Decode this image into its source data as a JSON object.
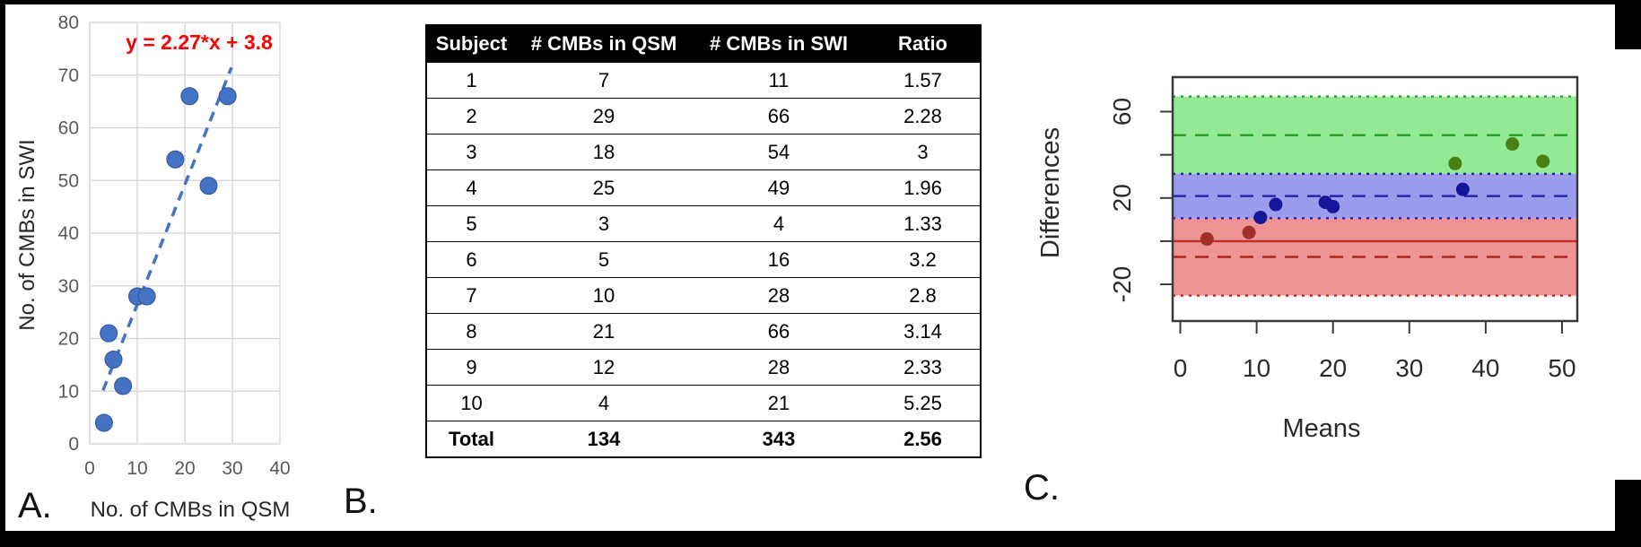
{
  "labels": {
    "panel_a": "A.",
    "panel_b": "B.",
    "panel_c": "C."
  },
  "table": {
    "headers": [
      "Subject",
      "# CMBs in QSM",
      "# CMBs in SWI",
      "Ratio"
    ],
    "rows": [
      [
        "1",
        "7",
        "11",
        "1.57"
      ],
      [
        "2",
        "29",
        "66",
        "2.28"
      ],
      [
        "3",
        "18",
        "54",
        "3"
      ],
      [
        "4",
        "25",
        "49",
        "1.96"
      ],
      [
        "5",
        "3",
        "4",
        "1.33"
      ],
      [
        "6",
        "5",
        "16",
        "3.2"
      ],
      [
        "7",
        "10",
        "28",
        "2.8"
      ],
      [
        "8",
        "21",
        "66",
        "3.14"
      ],
      [
        "9",
        "12",
        "28",
        "2.33"
      ],
      [
        "10",
        "4",
        "21",
        "5.25"
      ]
    ],
    "total_row": [
      "Total",
      "134",
      "343",
      "2.56"
    ]
  },
  "chart_data": [
    {
      "panel": "A",
      "type": "scatter",
      "equation_label": "y = 2.27*x + 3.8",
      "equation_color": "#FF0000",
      "xlabel": "No. of CMBs in QSM",
      "ylabel": "No. of CMBs in SWI",
      "xlim": [
        0,
        40
      ],
      "ylim": [
        0,
        80
      ],
      "xticks": [
        0,
        10,
        20,
        30,
        40
      ],
      "yticks": [
        0,
        10,
        20,
        30,
        40,
        50,
        60,
        70,
        80
      ],
      "grid": true,
      "grid_color": "#D9D9D9",
      "tick_color": "#595959",
      "point_color": "#4472C4",
      "points": [
        {
          "x": 7,
          "y": 11
        },
        {
          "x": 29,
          "y": 66
        },
        {
          "x": 18,
          "y": 54
        },
        {
          "x": 25,
          "y": 49
        },
        {
          "x": 3,
          "y": 4
        },
        {
          "x": 5,
          "y": 16
        },
        {
          "x": 10,
          "y": 28
        },
        {
          "x": 21,
          "y": 66
        },
        {
          "x": 12,
          "y": 28
        },
        {
          "x": 4,
          "y": 21
        }
      ],
      "trendline": {
        "slope": 2.27,
        "intercept": 3.8,
        "x_start": 2.8,
        "x_end": 29.8,
        "style": "dashed",
        "color": "#4472C4"
      }
    },
    {
      "panel": "C",
      "type": "scatter",
      "subtype": "bland-altman",
      "xlabel": "Means",
      "ylabel": "Differences",
      "xlim": [
        -1,
        52
      ],
      "ylim": [
        -37,
        76
      ],
      "xticks": [
        0,
        10,
        20,
        30,
        40,
        50
      ],
      "yticks": [
        -20,
        0,
        20,
        40,
        60
      ],
      "ytick_labels": [
        -20,
        20,
        60
      ],
      "bands": [
        {
          "y_from": 31.2,
          "y_to": 67.0,
          "fill": "#94EA94",
          "name": "upper-loa-ci-band"
        },
        {
          "y_from": 10.6,
          "y_to": 31.2,
          "fill": "#9C9CEC",
          "name": "bias-ci-band"
        },
        {
          "y_from": -25.2,
          "y_to": 10.6,
          "fill": "#EE9494",
          "name": "lower-loa-ci-band"
        }
      ],
      "lines": [
        {
          "y": 67.0,
          "style": "dotted",
          "color": "#2CA02C"
        },
        {
          "y": 49.1,
          "style": "dashed",
          "color": "#2CA02C"
        },
        {
          "y": 31.2,
          "style": "dotted",
          "color": "#2626B2"
        },
        {
          "y": 20.9,
          "style": "dashed",
          "color": "#2626B2"
        },
        {
          "y": 10.6,
          "style": "dotted",
          "color": "#2626B2"
        },
        {
          "y": 0,
          "style": "solid",
          "color": "#C03028"
        },
        {
          "y": -7.3,
          "style": "dashed",
          "color": "#A82820"
        },
        {
          "y": -25.2,
          "style": "dotted",
          "color": "#C03028"
        }
      ],
      "points": [
        {
          "x": 9,
          "y": 4,
          "color": "#A03028"
        },
        {
          "x": 47.5,
          "y": 37,
          "color": "#4A7F12"
        },
        {
          "x": 36,
          "y": 36,
          "color": "#4A7F12"
        },
        {
          "x": 37,
          "y": 24,
          "color": "#16169C"
        },
        {
          "x": 3.5,
          "y": 1,
          "color": "#A03028"
        },
        {
          "x": 10.5,
          "y": 11,
          "color": "#16169C"
        },
        {
          "x": 19,
          "y": 18,
          "color": "#16169C"
        },
        {
          "x": 43.5,
          "y": 45,
          "color": "#4A7F12"
        },
        {
          "x": 20,
          "y": 16,
          "color": "#16169C"
        },
        {
          "x": 12.5,
          "y": 17,
          "color": "#16169C"
        }
      ]
    }
  ]
}
